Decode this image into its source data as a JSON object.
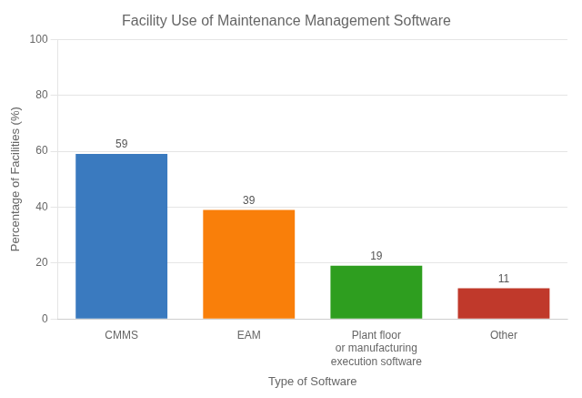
{
  "chart_data": {
    "type": "bar",
    "title": "Facility Use of Maintenance Management Software",
    "xlabel": "Type of Software",
    "ylabel": "Percentage of Facilities (%)",
    "categories": [
      "CMMS",
      "EAM",
      "Plant floor\nor manufacturing\nexecution software",
      "Other"
    ],
    "values": [
      59,
      39,
      19,
      11
    ],
    "colors": [
      "#3a7abf",
      "#f97f0a",
      "#2e9e1f",
      "#c0392b"
    ],
    "ylim": [
      0,
      100
    ],
    "yticks": [
      0,
      20,
      40,
      60,
      80,
      100
    ],
    "grid": true,
    "data_labels": true
  }
}
